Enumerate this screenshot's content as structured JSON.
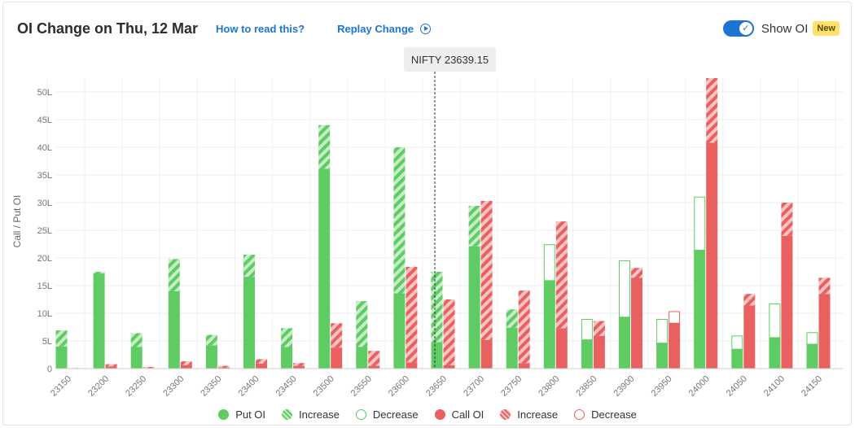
{
  "header": {
    "title": "OI Change on Thu, 12 Mar",
    "how_to_read": "How to read this?",
    "replay": "Replay Change",
    "show_oi": "Show OI",
    "badge": "New"
  },
  "spot_label": "NIFTY 23639.15",
  "colors": {
    "put": "#5ecb63",
    "put_light": "#c7edc8",
    "call": "#e8605f",
    "call_light": "#f7c4c3",
    "accent": "#1e74d4",
    "badge": "#ffe16b"
  },
  "legend": {
    "put_oi": "Put OI",
    "put_increase": "Increase",
    "put_decrease": "Decrease",
    "call_oi": "Call OI",
    "call_increase": "Increase",
    "call_decrease": "Decrease"
  },
  "chart_data": {
    "type": "bar",
    "title": "OI Change on Thu, 12 Mar",
    "ylabel": "Call / Put OI",
    "xlabel": "",
    "ylim": [
      0,
      52.5
    ],
    "yticks": [
      "0",
      "5L",
      "10L",
      "15L",
      "20L",
      "25L",
      "30L",
      "35L",
      "40L",
      "45L",
      "50L"
    ],
    "grid": true,
    "legend_position": "bottom",
    "spot_marker": {
      "label": "NIFTY 23639.15",
      "value": 23639.15
    },
    "categories": [
      "23150",
      "23200",
      "23250",
      "23300",
      "23350",
      "23400",
      "23450",
      "23500",
      "23550",
      "23600",
      "23650",
      "23700",
      "23750",
      "23800",
      "23850",
      "23900",
      "23950",
      "24000",
      "24050",
      "24100",
      "24150"
    ],
    "series": [
      {
        "name": "Put OI",
        "base": [
          4.0,
          17.2,
          3.9,
          14.0,
          4.2,
          16.6,
          3.9,
          36.1,
          3.9,
          13.6,
          4.8,
          22.1,
          7.4,
          15.9,
          5.2,
          9.3,
          4.6,
          21.4,
          3.5,
          5.6,
          4.4
        ],
        "total": [
          6.9,
          17.5,
          6.4,
          19.8,
          6.1,
          20.6,
          7.3,
          44.0,
          12.2,
          40.0,
          17.5,
          29.4,
          10.7,
          22.4,
          8.9,
          19.5,
          8.9,
          31.0,
          5.9,
          11.7,
          6.5
        ],
        "change": [
          "increase",
          "increase",
          "increase",
          "increase",
          "increase",
          "increase",
          "increase",
          "increase",
          "increase",
          "increase",
          "increase",
          "increase",
          "increase",
          "decrease",
          "decrease",
          "decrease",
          "decrease",
          "decrease",
          "decrease",
          "decrease",
          "decrease"
        ]
      },
      {
        "name": "Call OI",
        "base": [
          0.0,
          0.4,
          0.1,
          0.6,
          0.2,
          0.9,
          0.5,
          3.8,
          0.5,
          1.1,
          0.6,
          5.2,
          1.0,
          7.3,
          5.9,
          16.4,
          8.2,
          40.8,
          11.4,
          24.0,
          13.5
        ],
        "total": [
          0.1,
          0.8,
          0.3,
          1.3,
          0.5,
          1.7,
          1.0,
          8.2,
          3.2,
          18.4,
          12.5,
          30.3,
          14.1,
          26.6,
          8.6,
          18.2,
          10.3,
          52.5,
          13.5,
          30.0,
          16.4
        ],
        "change": [
          "increase",
          "increase",
          "increase",
          "increase",
          "increase",
          "increase",
          "increase",
          "increase",
          "increase",
          "increase",
          "increase",
          "increase",
          "increase",
          "increase",
          "increase",
          "increase",
          "decrease",
          "increase",
          "increase",
          "increase",
          "increase"
        ]
      }
    ]
  }
}
